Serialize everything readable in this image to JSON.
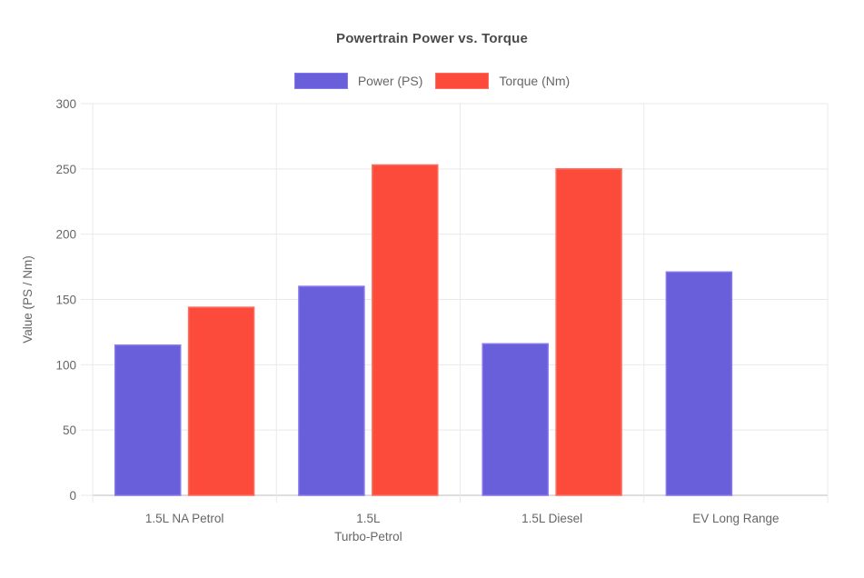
{
  "chart_data": {
    "type": "bar",
    "title": "Powertrain Power vs. Torque",
    "categories": [
      "1.5L NA Petrol",
      "1.5L Turbo-Petrol",
      "1.5L Diesel",
      "EV Long Range"
    ],
    "category_label_lines": [
      [
        "1.5L NA Petrol"
      ],
      [
        "1.5L",
        "Turbo-Petrol"
      ],
      [
        "1.5L Diesel"
      ],
      [
        "EV Long Range"
      ]
    ],
    "series": [
      {
        "name": "Power (PS)",
        "color": "#6A5FDB",
        "border_color": "#8678EB",
        "values": [
          115,
          160,
          116,
          171
        ]
      },
      {
        "name": "Torque (Nm)",
        "color": "#FC4A3B",
        "border_color": "#FD6E61",
        "values": [
          144,
          253,
          250,
          null
        ]
      }
    ],
    "xlabel": "",
    "ylabel": "Value (PS / Nm)",
    "ylim": [
      0,
      300
    ],
    "yticks": [
      0,
      50,
      100,
      150,
      200,
      250,
      300
    ],
    "grid": true,
    "legend_position": "top"
  },
  "colors": {
    "title_text": "#4a4a4a",
    "axis_text": "#666666",
    "gridline": "#e9e9e9",
    "baseline": "#d4d4d4",
    "background": "#ffffff"
  }
}
